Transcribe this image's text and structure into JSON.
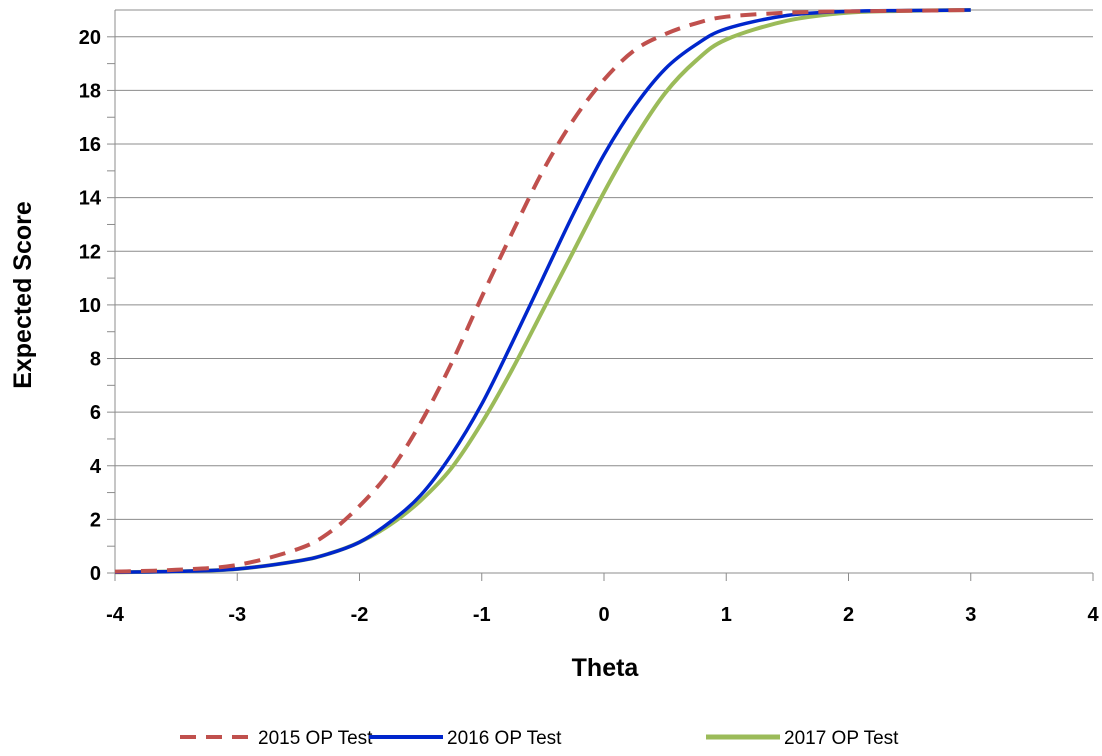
{
  "chart_data": {
    "type": "line",
    "title": "",
    "xlabel": "Theta",
    "ylabel": "Expected Score",
    "xlim": [
      -4,
      4
    ],
    "ylim": [
      0,
      21
    ],
    "xticks": [
      -4,
      -3,
      -2,
      -1,
      0,
      1,
      2,
      3,
      4
    ],
    "xtick_labels": [
      "-4",
      "-3",
      "-2",
      "-1",
      "0",
      "1",
      "2",
      "3",
      "4"
    ],
    "yticks": [
      0,
      2,
      4,
      6,
      8,
      10,
      12,
      14,
      16,
      18,
      20
    ],
    "ytick_labels": [
      "0",
      "2",
      "4",
      "6",
      "8",
      "10",
      "12",
      "14",
      "16",
      "18",
      "20"
    ],
    "y_minor_ticks": [
      1,
      3,
      5,
      7,
      9,
      11,
      13,
      15,
      17,
      19
    ],
    "grid": "horizontal",
    "legend_position": "bottom",
    "series": [
      {
        "name": "2015 OP Test",
        "color": "#c0504d",
        "dash": "dashed",
        "x": [
          -4,
          -3.5,
          -3,
          -2.5,
          -2.25,
          -2,
          -1.75,
          -1.5,
          -1.25,
          -1,
          -0.75,
          -0.5,
          -0.25,
          0,
          0.25,
          0.5,
          0.75,
          1,
          1.5,
          2,
          2.5,
          3
        ],
        "y": [
          0.05,
          0.12,
          0.3,
          0.9,
          1.5,
          2.5,
          3.8,
          5.6,
          7.8,
          10.3,
          12.7,
          15.0,
          16.9,
          18.4,
          19.5,
          20.1,
          20.5,
          20.75,
          20.9,
          20.95,
          20.97,
          21.0
        ]
      },
      {
        "name": "2016 OP Test",
        "color": "#0026cc",
        "dash": "solid",
        "x": [
          -4,
          -3.5,
          -3,
          -2.5,
          -2.25,
          -2,
          -1.75,
          -1.5,
          -1.25,
          -1,
          -0.75,
          -0.5,
          -0.25,
          0,
          0.25,
          0.5,
          0.75,
          1,
          1.5,
          2,
          2.5,
          3
        ],
        "y": [
          0.03,
          0.06,
          0.15,
          0.45,
          0.72,
          1.15,
          1.9,
          2.9,
          4.4,
          6.3,
          8.6,
          11.0,
          13.4,
          15.6,
          17.4,
          18.8,
          19.7,
          20.3,
          20.8,
          20.95,
          20.98,
          21.0
        ]
      },
      {
        "name": "2017 OP Test",
        "color": "#9bbb59",
        "dash": "solid",
        "x": [
          -4,
          -3.5,
          -3,
          -2.5,
          -2.25,
          -2,
          -1.75,
          -1.5,
          -1.25,
          -1,
          -0.75,
          -0.5,
          -0.25,
          0,
          0.25,
          0.5,
          0.75,
          1,
          1.5,
          2,
          2.5,
          3
        ],
        "y": [
          0.03,
          0.06,
          0.15,
          0.45,
          0.72,
          1.15,
          1.8,
          2.7,
          3.9,
          5.6,
          7.6,
          9.8,
          12.0,
          14.2,
          16.2,
          17.9,
          19.1,
          19.9,
          20.6,
          20.9,
          20.97,
          21.0
        ]
      }
    ]
  }
}
